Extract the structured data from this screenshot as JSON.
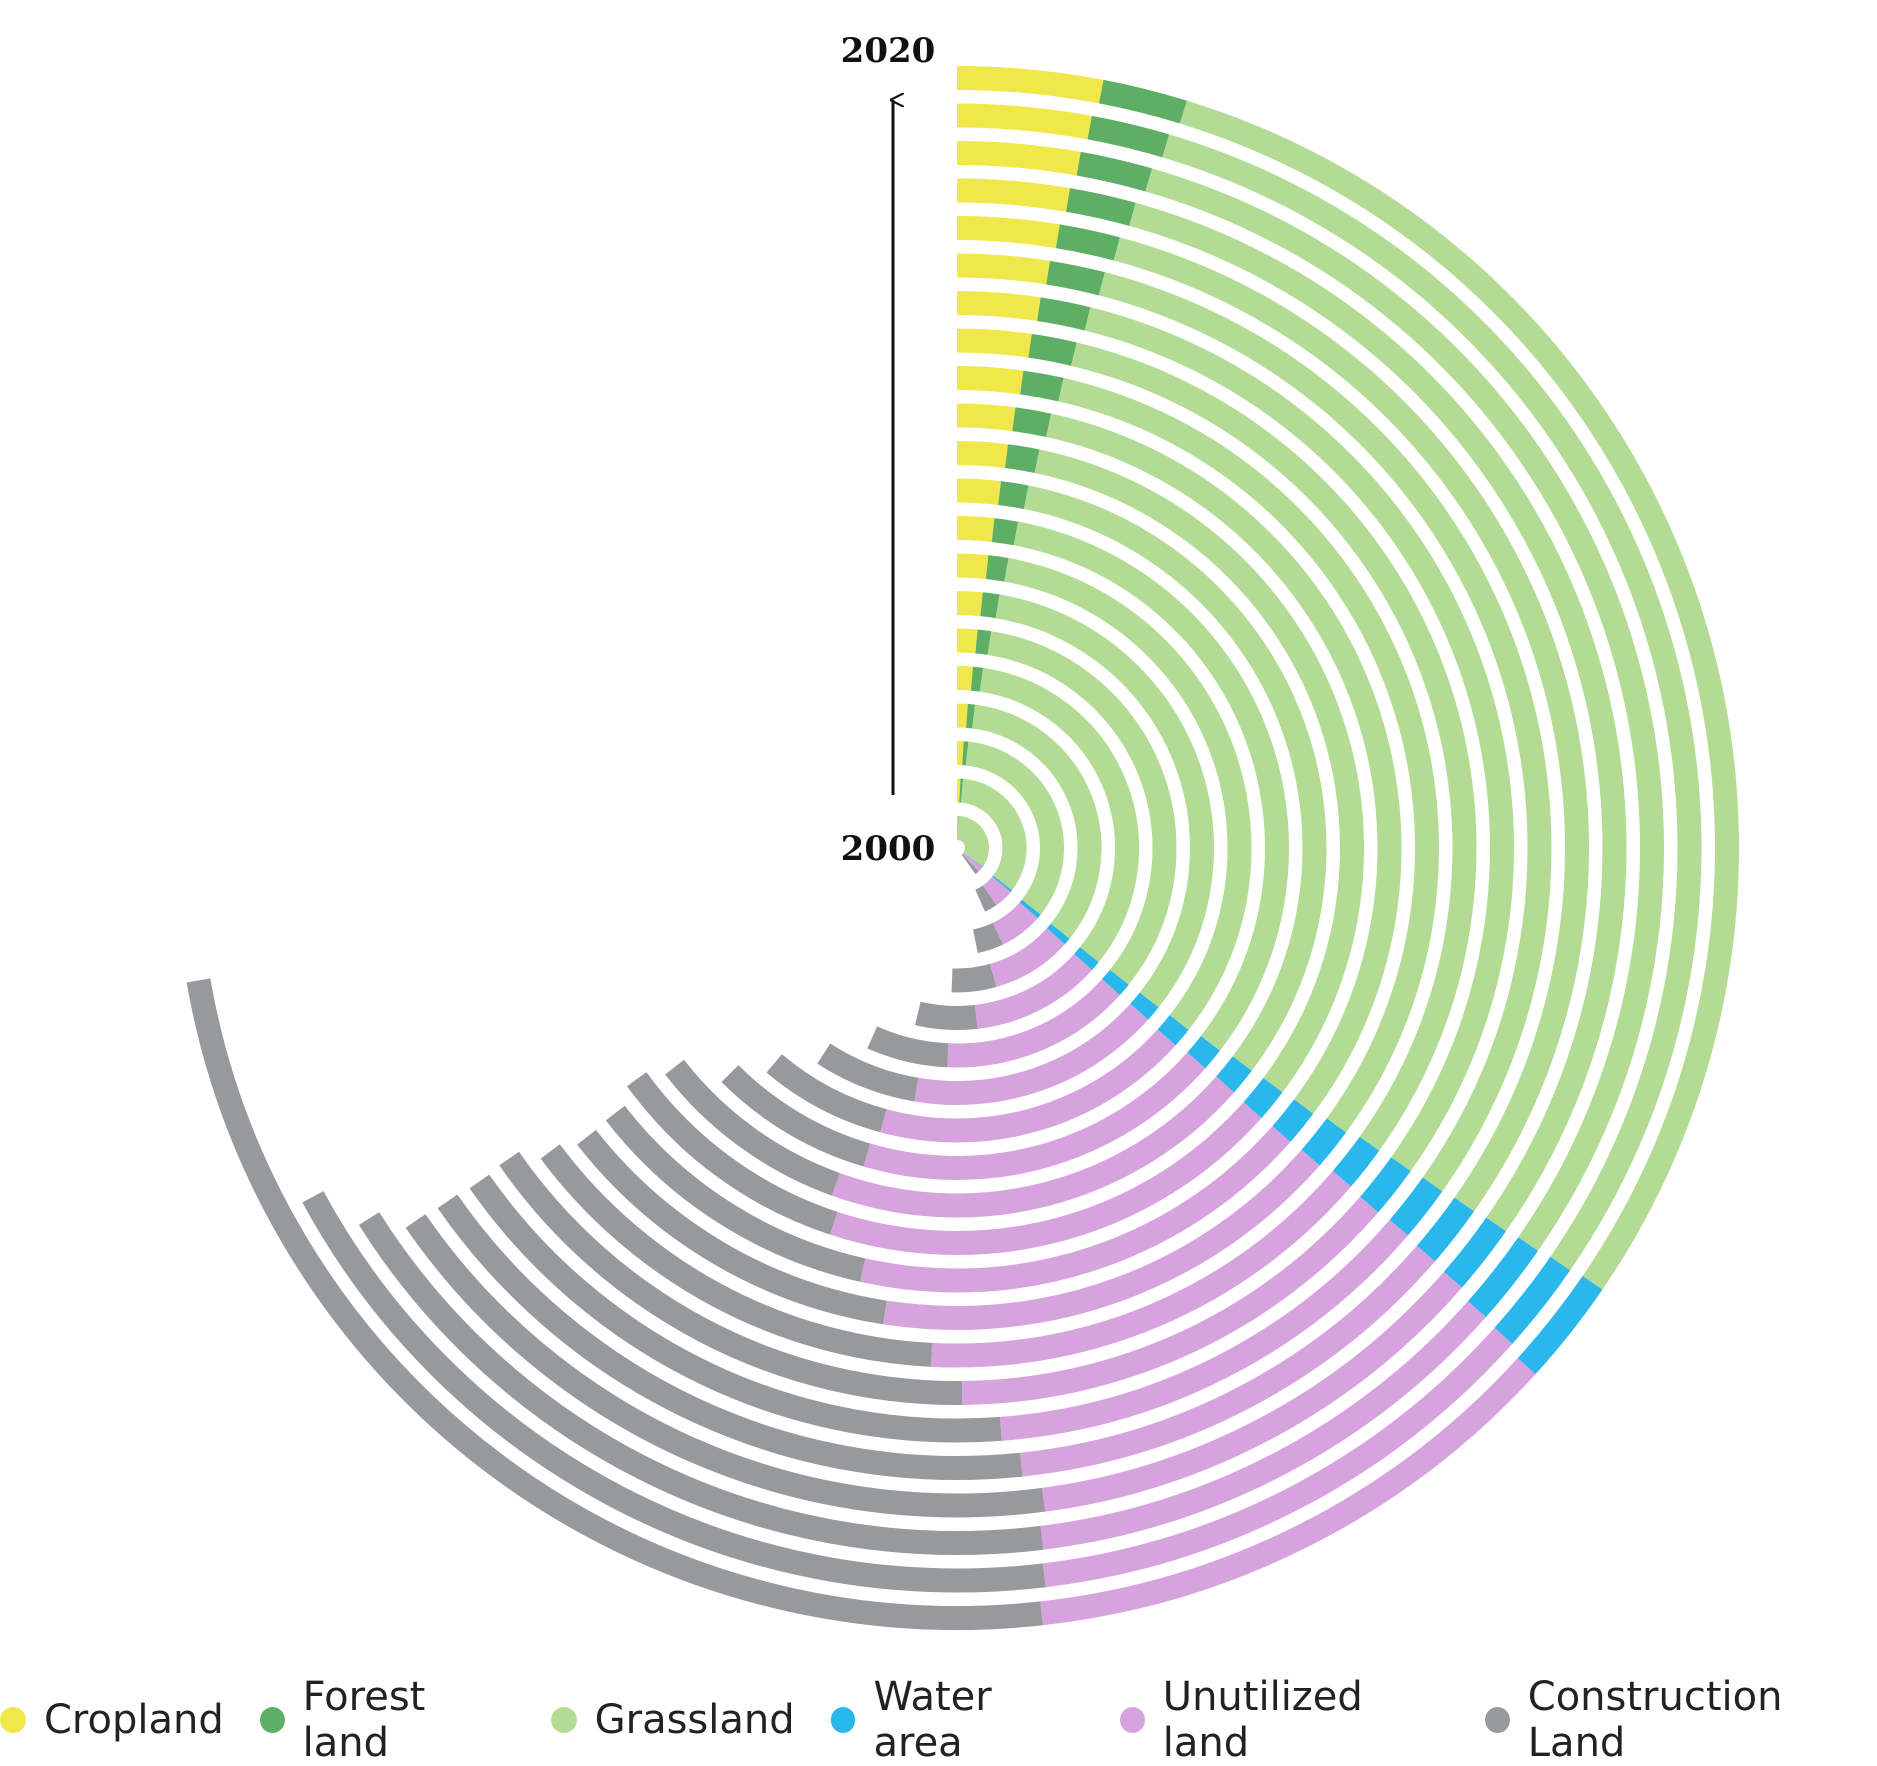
{
  "chart_data": {
    "type": "radial-stacked-bar",
    "rings_order": "inner to outer",
    "annotations": {
      "start_year": "2000",
      "end_year": "2020"
    },
    "categories": [
      "2000",
      "2001",
      "2002",
      "2003",
      "2004",
      "2005",
      "2006",
      "2007",
      "2008",
      "2009",
      "2010",
      "2011",
      "2012",
      "2013",
      "2014",
      "2015",
      "2016",
      "2017",
      "2018",
      "2019",
      "2020"
    ],
    "series": [
      {
        "name": "Cropland",
        "color": "#f0e84a",
        "values": [
          0.5,
          0.8,
          1.0,
          1.2,
          1.4,
          1.5,
          1.6,
          1.7,
          1.8,
          1.9,
          2.0,
          2.1,
          2.2,
          2.3,
          2.4,
          2.5,
          2.6,
          2.7,
          2.8,
          2.9,
          3.0
        ]
      },
      {
        "name": "Forest land",
        "color": "#5fae65",
        "values": [
          0.4,
          0.6,
          0.7,
          0.8,
          0.9,
          1.0,
          1.05,
          1.1,
          1.15,
          1.2,
          1.25,
          1.3,
          1.35,
          1.4,
          1.45,
          1.5,
          1.55,
          1.6,
          1.65,
          1.7,
          1.75
        ]
      },
      {
        "name": "Grassland",
        "color": "#b3db93",
        "values": [
          34,
          34,
          34,
          33.8,
          33.5,
          33.2,
          33,
          32.8,
          32.5,
          32.2,
          32,
          31.8,
          31.5,
          31.2,
          31,
          30.8,
          30.6,
          30.4,
          30.2,
          30,
          29.8
        ]
      },
      {
        "name": "Water area",
        "color": "#2ab7ec",
        "values": [
          0.3,
          0.5,
          0.7,
          0.8,
          0.9,
          1.0,
          1.0,
          1.1,
          1.1,
          1.2,
          1.3,
          1.3,
          1.4,
          1.4,
          1.5,
          1.5,
          1.6,
          1.7,
          1.9,
          2.0,
          2.2
        ]
      },
      {
        "name": "Unutilized land",
        "color": "#d7a3df",
        "values": [
          3.0,
          4.5,
          6.5,
          9.0,
          11.5,
          14.0,
          16.0,
          17.5,
          18.0,
          19.0,
          18.5,
          17.0,
          16.0,
          14.5,
          13.5,
          12.5,
          12.0,
          11.5,
          11.5,
          11.5,
          11.5
        ]
      },
      {
        "name": "Construction Land",
        "color": "#97999c",
        "values": [
          2.0,
          3.0,
          4.0,
          5.0,
          5.5,
          6.0,
          6.5,
          7.0,
          8.0,
          9.0,
          10.0,
          11.0,
          12.0,
          14.0,
          15.5,
          16.5,
          17.0,
          17.5,
          18.0,
          19.0,
          24.0
        ]
      }
    ],
    "grid": false,
    "legend_position": "bottom"
  }
}
